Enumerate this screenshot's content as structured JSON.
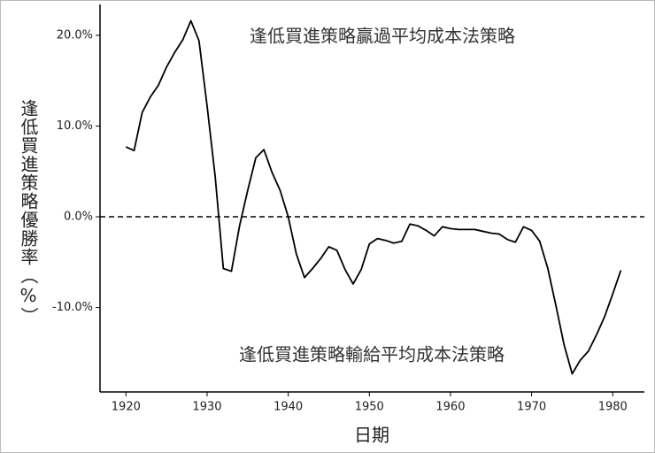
{
  "chart_data": {
    "type": "line",
    "annotations": [
      "逢低買進策略贏過平均成本法策略",
      "逢低買進策略輸給平均成本法策略"
    ],
    "x_label": "日期",
    "y_label": "逢低買進策略優勝率（%）",
    "x": [
      1920,
      1921,
      1922,
      1923,
      1924,
      1925,
      1926,
      1927,
      1928,
      1929,
      1930,
      1931,
      1932,
      1933,
      1934,
      1935,
      1936,
      1937,
      1938,
      1939,
      1940,
      1941,
      1942,
      1943,
      1944,
      1945,
      1946,
      1947,
      1948,
      1949,
      1950,
      1951,
      1952,
      1953,
      1954,
      1955,
      1956,
      1957,
      1958,
      1959,
      1960,
      1961,
      1962,
      1963,
      1964,
      1965,
      1966,
      1967,
      1968,
      1969,
      1970,
      1971,
      1972,
      1973,
      1974,
      1975,
      1976,
      1977,
      1978,
      1979,
      1980,
      1981
    ],
    "values": [
      7.7,
      7.3,
      11.5,
      13.2,
      14.5,
      16.5,
      18.1,
      19.5,
      21.6,
      19.4,
      12.2,
      4.4,
      -5.7,
      -6.0,
      -1.0,
      2.9,
      6.5,
      7.4,
      4.9,
      2.9,
      0.0,
      -4.1,
      -6.7,
      -5.7,
      -4.6,
      -3.3,
      -3.7,
      -5.8,
      -7.4,
      -5.8,
      -3.0,
      -2.4,
      -2.6,
      -2.9,
      -2.7,
      -0.8,
      -1.0,
      -1.5,
      -2.1,
      -1.1,
      -1.3,
      -1.4,
      -1.4,
      -1.4,
      -1.6,
      -1.8,
      -1.9,
      -2.5,
      -2.8,
      -1.1,
      -1.5,
      -2.7,
      -5.7,
      -9.8,
      -14.1,
      -17.3,
      -15.8,
      -14.8,
      -13.0,
      -11.0,
      -8.5,
      -5.9
    ],
    "color": "#000000",
    "xlim": [
      1916.8,
      1983.9
    ],
    "ylim": [
      -19.3,
      23.4
    ],
    "xticks": [
      1920,
      1930,
      1940,
      1950,
      1960,
      1970,
      1980
    ],
    "yticks": [
      {
        "value": -10,
        "label": "-10.0%"
      },
      {
        "value": 0,
        "label": "0.0%"
      },
      {
        "value": 10,
        "label": "10.0%"
      },
      {
        "value": 20,
        "label": "20.0%"
      }
    ],
    "reference_line": 0
  }
}
